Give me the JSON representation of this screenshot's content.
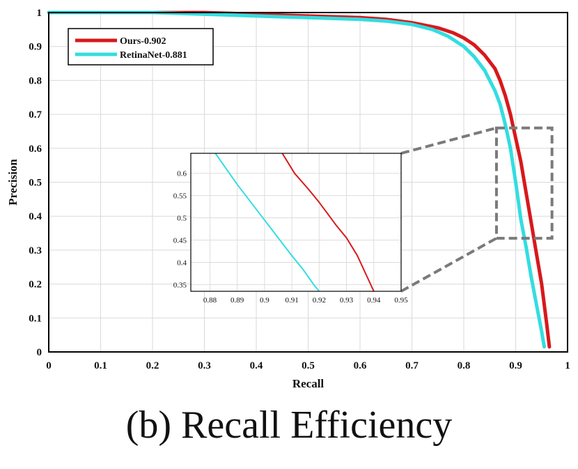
{
  "caption": "(b) Recall Efficiency",
  "chart_data": {
    "type": "line",
    "xlabel": "Recall",
    "ylabel": "Precision",
    "xlim": [
      0,
      1
    ],
    "ylim": [
      0,
      1
    ],
    "xticks": [
      0,
      0.1,
      0.2,
      0.3,
      0.4,
      0.5,
      0.6,
      0.7,
      0.8,
      0.9,
      1
    ],
    "yticks": [
      0,
      0.1,
      0.2,
      0.3,
      0.4,
      0.5,
      0.6,
      0.7,
      0.8,
      0.9,
      1
    ],
    "grid": true,
    "legend": "top-left",
    "series": [
      {
        "name": "Ours-0.902",
        "color": "#d7191c",
        "x": [
          0,
          0.1,
          0.2,
          0.3,
          0.4,
          0.5,
          0.6,
          0.65,
          0.7,
          0.75,
          0.78,
          0.8,
          0.82,
          0.84,
          0.86,
          0.87,
          0.88,
          0.89,
          0.9,
          0.91,
          0.92,
          0.93,
          0.94,
          0.95,
          0.96,
          0.965
        ],
        "y": [
          1.0,
          1.0,
          1.0,
          1.0,
          0.995,
          0.99,
          0.985,
          0.98,
          0.97,
          0.955,
          0.94,
          0.925,
          0.905,
          0.875,
          0.835,
          0.8,
          0.755,
          0.7,
          0.63,
          0.56,
          0.47,
          0.38,
          0.29,
          0.2,
          0.08,
          0.015
        ]
      },
      {
        "name": "RetinaNet-0.881",
        "color": "#33dde0",
        "x": [
          0,
          0.1,
          0.2,
          0.3,
          0.4,
          0.5,
          0.6,
          0.65,
          0.7,
          0.74,
          0.77,
          0.8,
          0.82,
          0.84,
          0.86,
          0.87,
          0.88,
          0.89,
          0.9,
          0.91,
          0.92,
          0.93,
          0.94,
          0.95,
          0.955
        ],
        "y": [
          1.0,
          1.0,
          1.0,
          0.995,
          0.99,
          0.985,
          0.98,
          0.975,
          0.965,
          0.95,
          0.93,
          0.9,
          0.87,
          0.83,
          0.77,
          0.73,
          0.67,
          0.6,
          0.5,
          0.39,
          0.31,
          0.22,
          0.14,
          0.06,
          0.015
        ]
      }
    ],
    "inset": {
      "xlim": [
        0.873,
        0.95
      ],
      "ylim": [
        0.335,
        0.645
      ],
      "xticks": [
        0.88,
        0.89,
        0.9,
        0.91,
        0.92,
        0.93,
        0.94,
        0.95
      ],
      "yticks": [
        0.35,
        0.4,
        0.45,
        0.5,
        0.55,
        0.6
      ],
      "series": [
        {
          "name": "Ours-0.902",
          "x": [
            0.9065,
            0.911,
            0.916,
            0.92,
            0.923,
            0.926,
            0.93,
            0.934,
            0.937,
            0.94
          ],
          "y": [
            0.645,
            0.6,
            0.565,
            0.535,
            0.51,
            0.485,
            0.455,
            0.415,
            0.375,
            0.335
          ]
        },
        {
          "name": "RetinaNet-0.881",
          "x": [
            0.882,
            0.886,
            0.89,
            0.895,
            0.9,
            0.905,
            0.91,
            0.914,
            0.918,
            0.92
          ],
          "y": [
            0.645,
            0.61,
            0.575,
            0.535,
            0.495,
            0.455,
            0.415,
            0.385,
            0.35,
            0.335
          ]
        }
      ]
    }
  }
}
